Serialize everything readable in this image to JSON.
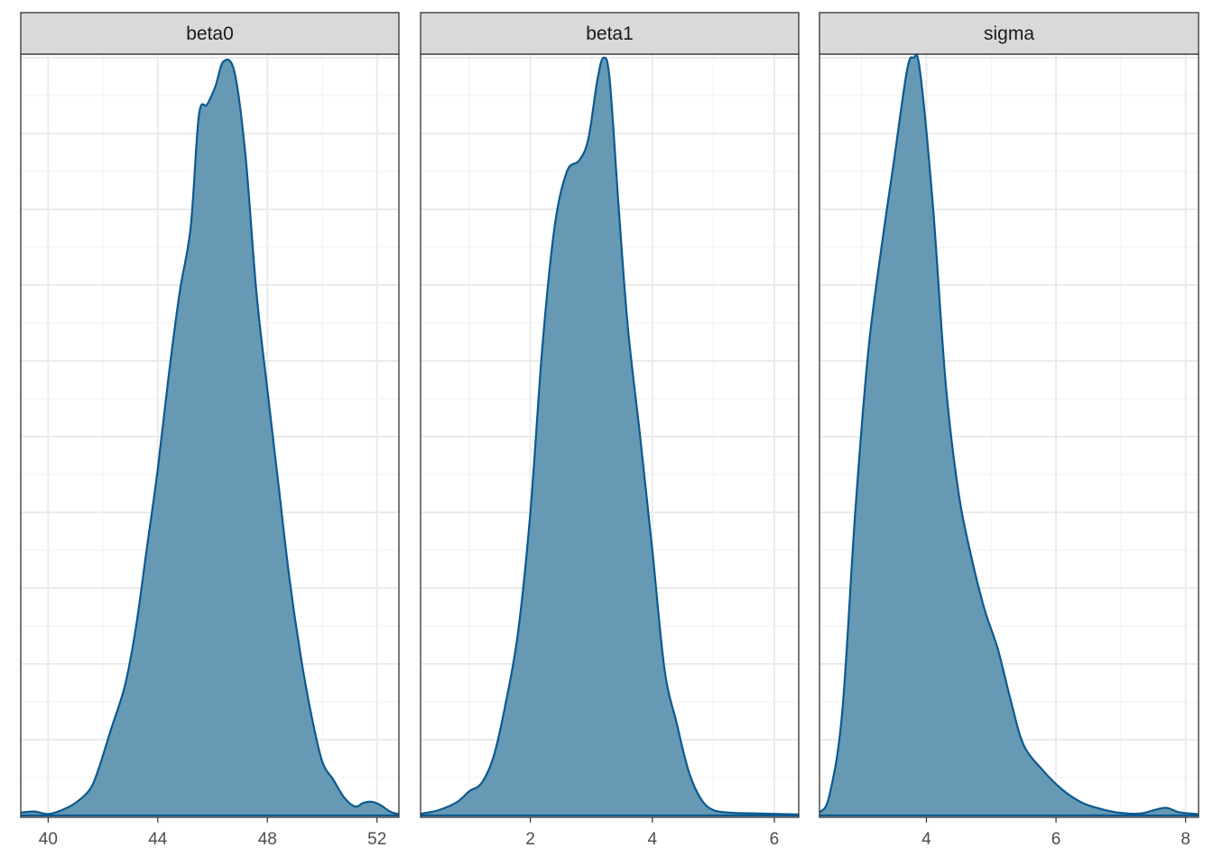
{
  "chart_data": {
    "type": "area",
    "layout": "facets-1x3",
    "colors": {
      "fill": "#6699b4",
      "line": "#0b5a8f",
      "strip": "#d9d9d9",
      "border": "#333333",
      "grid": "#ebebeb"
    },
    "grid": true,
    "panels": [
      {
        "name": "beta0",
        "xlim": [
          39,
          52.8
        ],
        "xticks": [
          40,
          44,
          48,
          52
        ],
        "x": [
          39.0,
          39.5,
          40.0,
          40.5,
          41.0,
          41.5,
          41.8,
          42.3,
          42.8,
          43.2,
          43.6,
          44.0,
          44.4,
          44.8,
          45.2,
          45.5,
          45.8,
          46.1,
          46.4,
          46.8,
          47.2,
          47.6,
          48.0,
          48.4,
          48.8,
          49.2,
          49.6,
          50.0,
          50.4,
          50.8,
          51.2,
          51.5,
          51.8,
          52.1,
          52.5,
          52.8
        ],
        "density": [
          0.008,
          0.011,
          0.004,
          0.015,
          0.035,
          0.07,
          0.12,
          0.24,
          0.36,
          0.52,
          0.74,
          0.96,
          1.22,
          1.45,
          1.63,
          1.94,
          1.97,
          2.02,
          2.09,
          2.06,
          1.83,
          1.45,
          1.18,
          0.92,
          0.66,
          0.45,
          0.28,
          0.15,
          0.1,
          0.05,
          0.025,
          0.035,
          0.038,
          0.03,
          0.01,
          0.004
        ],
        "ylim": [
          0,
          2.1
        ]
      },
      {
        "name": "beta1",
        "xlim": [
          0.2,
          6.4
        ],
        "xticks": [
          2,
          4,
          6
        ],
        "x": [
          0.2,
          0.5,
          0.8,
          1.0,
          1.2,
          1.4,
          1.6,
          1.8,
          2.0,
          2.2,
          2.4,
          2.6,
          2.8,
          2.95,
          3.1,
          3.2,
          3.3,
          3.45,
          3.6,
          3.8,
          4.0,
          4.2,
          4.4,
          4.6,
          4.8,
          5.0,
          5.3,
          5.6,
          6.0,
          6.4
        ],
        "density": [
          0.003,
          0.01,
          0.025,
          0.045,
          0.06,
          0.11,
          0.21,
          0.34,
          0.56,
          0.87,
          1.09,
          1.19,
          1.21,
          1.25,
          1.36,
          1.4,
          1.36,
          1.12,
          0.9,
          0.7,
          0.49,
          0.27,
          0.17,
          0.08,
          0.03,
          0.01,
          0.005,
          0.004,
          0.003,
          0.002
        ],
        "ylim": [
          0,
          1.4
        ]
      },
      {
        "name": "sigma",
        "xlim": [
          2.35,
          8.2
        ],
        "xticks": [
          4,
          6,
          8
        ],
        "x": [
          2.35,
          2.5,
          2.7,
          2.9,
          3.1,
          3.3,
          3.5,
          3.7,
          3.8,
          3.9,
          4.1,
          4.3,
          4.5,
          4.7,
          4.9,
          5.1,
          5.3,
          5.5,
          5.8,
          6.1,
          6.4,
          6.7,
          7.0,
          7.3,
          7.5,
          7.7,
          7.9,
          8.2
        ],
        "density": [
          0.005,
          0.03,
          0.16,
          0.47,
          0.72,
          0.88,
          1.02,
          1.16,
          1.18,
          1.16,
          0.95,
          0.67,
          0.5,
          0.4,
          0.32,
          0.26,
          0.18,
          0.11,
          0.07,
          0.04,
          0.02,
          0.01,
          0.004,
          0.003,
          0.008,
          0.012,
          0.005,
          0.002
        ],
        "ylim": [
          0,
          1.18
        ]
      }
    ]
  }
}
